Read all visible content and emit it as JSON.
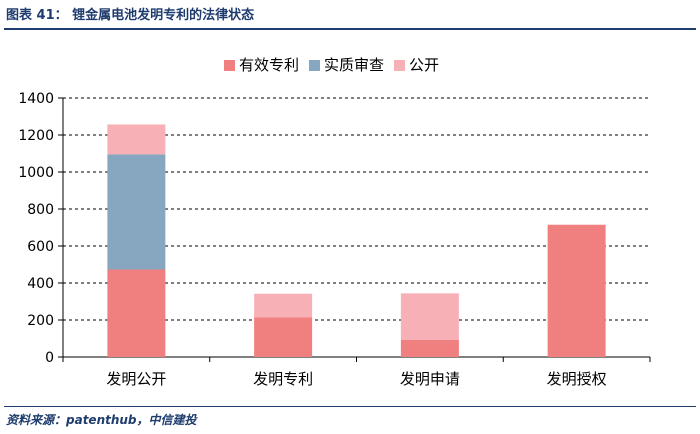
{
  "header": {
    "title": "图表 41：  锂金属电池发明专利的法律状态"
  },
  "footer": {
    "source": "资料来源：patenthub，中信建投"
  },
  "chart_data": {
    "type": "bar",
    "stacked": true,
    "categories": [
      "发明公开",
      "发明专利",
      "发明申请",
      "发明授权"
    ],
    "series": [
      {
        "name": "有效专利",
        "values": [
          473,
          215,
          92,
          715
        ],
        "color": "#f08080"
      },
      {
        "name": "实质审查",
        "values": [
          622,
          0,
          0,
          0
        ],
        "color": "#87a6c0"
      },
      {
        "name": "公开",
        "values": [
          162,
          127,
          252,
          0
        ],
        "color": "#f7b0b5"
      }
    ],
    "ylim": [
      0,
      1400
    ],
    "yticks": [
      0,
      200,
      400,
      600,
      800,
      1000,
      1200,
      1400
    ],
    "grid": true,
    "legend": "top"
  }
}
